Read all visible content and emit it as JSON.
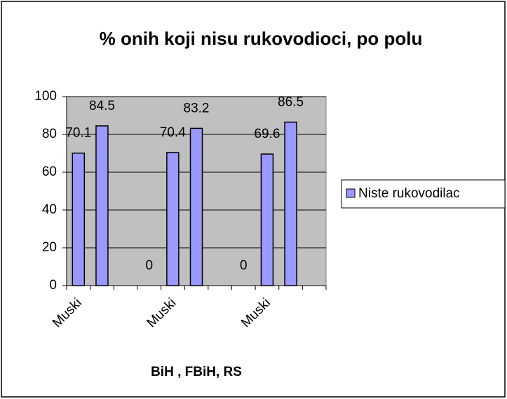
{
  "chart_data": {
    "type": "bar",
    "title": "% onih koji nisu rukovodioci, po polu",
    "x_label": "BiH , FBiH, RS",
    "categories": [
      "Muski",
      null,
      null,
      null,
      "Muski",
      null,
      null,
      null,
      "Muski",
      null,
      null
    ],
    "series": [
      {
        "name": "Niste rukovodilac",
        "color": "#9999ff",
        "values": [
          70.1,
          84.5,
          null,
          0,
          70.4,
          83.2,
          null,
          0,
          69.6,
          86.5,
          null
        ]
      }
    ],
    "ylim": [
      0,
      100
    ],
    "yticks": [
      0,
      20,
      40,
      60,
      80,
      100
    ],
    "grid": true,
    "legend": "right"
  }
}
